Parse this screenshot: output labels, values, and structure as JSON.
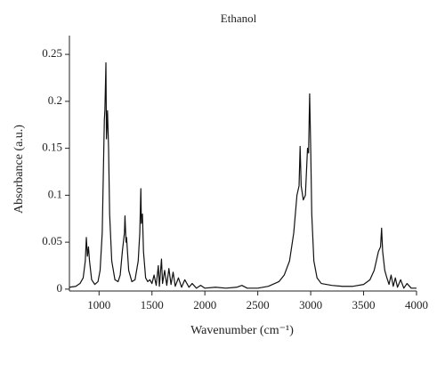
{
  "chart_data": {
    "type": "line",
    "title": "Ethanol",
    "xlabel": "Wavenumber (cm⁻¹)",
    "ylabel": "Absorbance (a.u.)",
    "xlim": [
      720,
      4000
    ],
    "ylim": [
      -0.002,
      0.27
    ],
    "xticks": [
      1000,
      1500,
      2000,
      2500,
      3000,
      3500,
      4000
    ],
    "yticks": [
      0,
      0.05,
      0.1,
      0.15,
      0.2,
      0.25
    ],
    "series": [
      {
        "name": "Ethanol",
        "color": "#111111",
        "x": [
          720,
          780,
          820,
          850,
          870,
          880,
          890,
          900,
          910,
          930,
          960,
          990,
          1010,
          1030,
          1040,
          1050,
          1055,
          1060,
          1065,
          1070,
          1080,
          1090,
          1100,
          1120,
          1150,
          1180,
          1200,
          1220,
          1240,
          1245,
          1255,
          1260,
          1280,
          1310,
          1340,
          1370,
          1385,
          1395,
          1400,
          1410,
          1420,
          1440,
          1460,
          1480,
          1500,
          1520,
          1540,
          1560,
          1570,
          1590,
          1600,
          1620,
          1640,
          1660,
          1680,
          1700,
          1720,
          1750,
          1780,
          1810,
          1850,
          1880,
          1920,
          1960,
          2000,
          2100,
          2200,
          2300,
          2350,
          2400,
          2500,
          2600,
          2700,
          2750,
          2800,
          2840,
          2870,
          2890,
          2900,
          2910,
          2930,
          2950,
          2970,
          2980,
          2990,
          3000,
          3010,
          3030,
          3060,
          3100,
          3200,
          3300,
          3400,
          3500,
          3560,
          3600,
          3620,
          3640,
          3660,
          3670,
          3680,
          3700,
          3720,
          3740,
          3760,
          3780,
          3800,
          3820,
          3850,
          3880,
          3910,
          3950,
          4000
        ],
        "values": [
          0.002,
          0.003,
          0.006,
          0.012,
          0.03,
          0.055,
          0.035,
          0.045,
          0.03,
          0.01,
          0.005,
          0.008,
          0.02,
          0.06,
          0.12,
          0.18,
          0.19,
          0.215,
          0.241,
          0.16,
          0.19,
          0.15,
          0.08,
          0.03,
          0.01,
          0.008,
          0.015,
          0.04,
          0.06,
          0.078,
          0.05,
          0.055,
          0.02,
          0.008,
          0.01,
          0.03,
          0.06,
          0.107,
          0.07,
          0.08,
          0.04,
          0.012,
          0.008,
          0.01,
          0.006,
          0.015,
          0.004,
          0.025,
          0.003,
          0.032,
          0.006,
          0.02,
          0.004,
          0.022,
          0.005,
          0.018,
          0.003,
          0.012,
          0.002,
          0.01,
          0.002,
          0.006,
          0.001,
          0.004,
          0.001,
          0.002,
          0.001,
          0.002,
          0.004,
          0.001,
          0.001,
          0.003,
          0.008,
          0.015,
          0.03,
          0.06,
          0.1,
          0.11,
          0.152,
          0.11,
          0.095,
          0.1,
          0.15,
          0.145,
          0.208,
          0.15,
          0.08,
          0.03,
          0.012,
          0.006,
          0.004,
          0.003,
          0.003,
          0.005,
          0.01,
          0.02,
          0.03,
          0.04,
          0.045,
          0.065,
          0.04,
          0.02,
          0.012,
          0.005,
          0.015,
          0.003,
          0.012,
          0.002,
          0.01,
          0.001,
          0.006,
          0.001,
          0.001
        ]
      }
    ]
  }
}
